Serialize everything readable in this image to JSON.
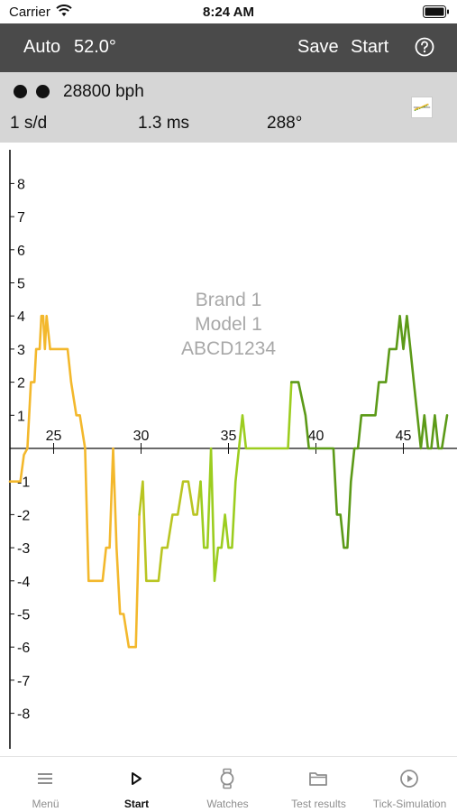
{
  "status_bar": {
    "carrier": "Carrier",
    "time": "8:24 AM"
  },
  "toolbar": {
    "mode": "Auto",
    "angle": "52.0°",
    "save_label": "Save",
    "start_label": "Start",
    "help_icon": "question-circle-icon"
  },
  "info": {
    "bph": "28800 bph",
    "rate": "1 s/d",
    "amplitude": "1.3 ms",
    "beat": "288°",
    "thumbnail_icon": "chart-thumbnail-icon"
  },
  "watch": {
    "brand": "Brand 1",
    "model": "Model 1",
    "serial": "ABCD1234"
  },
  "colors": {
    "toolbar_bg": "#4a4a4a",
    "info_bg": "#d6d6d6",
    "trace_early": "#f3b82c",
    "trace_mid": "#9ccd1f",
    "trace_late": "#5c9a18"
  },
  "chart_data": {
    "type": "line",
    "ylim": [
      -9,
      9
    ],
    "xlim": [
      22.5,
      47.5
    ],
    "x_ticks": [
      "25",
      "30",
      "35",
      "40",
      "45"
    ],
    "y_ticks": [
      "8",
      "7",
      "6",
      "5",
      "4",
      "3",
      "2",
      "1",
      "-1",
      "-2",
      "-3",
      "-4",
      "-5",
      "-6",
      "-7",
      "-8"
    ],
    "grid": false,
    "series": [
      {
        "color": "#f3b82c",
        "x": [
          22.5,
          22.8,
          23.1,
          23.3,
          23.5,
          23.7,
          23.9,
          24.0,
          24.2,
          24.3,
          24.4,
          24.5,
          24.6,
          24.8
        ],
        "y": [
          -1.0,
          -1.0,
          -1.0,
          -0.2,
          0.0,
          2.0,
          2.0,
          3.0,
          3.0,
          4.0,
          4.0,
          3.0,
          4.0,
          3.0
        ]
      },
      {
        "color": "#f3b82c",
        "x": [
          24.8,
          25.2,
          25.4,
          25.8,
          26.0,
          26.3,
          26.5,
          26.8,
          27.0,
          27.4,
          27.8,
          28.0,
          28.2,
          28.4,
          28.6,
          28.8,
          29.0,
          29.3,
          29.5,
          29.7,
          29.9
        ],
        "y": [
          3.0,
          3.0,
          3.0,
          3.0,
          2.0,
          1.0,
          1.0,
          0.0,
          -4.0,
          -4.0,
          -4.0,
          -3.0,
          -3.0,
          0.0,
          -3.0,
          -5.0,
          -5.0,
          -6.0,
          -6.0,
          -6.0,
          -2.0
        ]
      },
      {
        "color": "#b9c522",
        "x": [
          29.9,
          30.1,
          30.3,
          30.5,
          31.0,
          31.2,
          31.5,
          31.8,
          32.1,
          32.4,
          32.7,
          33.0,
          33.2,
          33.4
        ],
        "y": [
          -2.0,
          -1.0,
          -4.0,
          -4.0,
          -4.0,
          -3.0,
          -3.0,
          -2.0,
          -2.0,
          -1.0,
          -1.0,
          -2.0,
          -2.0,
          -1.0
        ]
      },
      {
        "color": "#9ccd1f",
        "x": [
          33.4,
          33.6,
          33.8,
          34.0,
          34.2,
          34.4,
          34.6,
          34.8,
          35.0,
          35.2,
          35.4,
          35.6,
          35.8,
          36.0,
          36.2,
          36.4,
          36.6,
          37.0,
          37.5,
          38.0,
          38.4,
          38.6
        ],
        "y": [
          -1.0,
          -3.0,
          -3.0,
          0.0,
          -4.0,
          -3.0,
          -3.0,
          -2.0,
          -3.0,
          -3.0,
          -1.0,
          0.0,
          1.0,
          0.0,
          0.0,
          0.0,
          0.0,
          0.0,
          0.0,
          0.0,
          0.0,
          2.0
        ]
      },
      {
        "color": "#5c9a18",
        "x": [
          38.6,
          39.0,
          39.4,
          39.6,
          39.8,
          40.0,
          40.2,
          40.6,
          41.0,
          41.2,
          41.4,
          41.6,
          41.8,
          42.0,
          42.2,
          42.4,
          42.6,
          43.0,
          43.4,
          43.6,
          44.0,
          44.2,
          44.4,
          44.6,
          44.8,
          45.0,
          45.2,
          45.4,
          45.6,
          45.8,
          46.0,
          46.2,
          46.4,
          46.6,
          46.8,
          47.0,
          47.2,
          47.5
        ],
        "y": [
          2.0,
          2.0,
          1.0,
          0.0,
          0.0,
          0.0,
          0.0,
          0.0,
          0.0,
          -2.0,
          -2.0,
          -3.0,
          -3.0,
          -1.0,
          0.0,
          0.0,
          1.0,
          1.0,
          1.0,
          2.0,
          2.0,
          3.0,
          3.0,
          3.0,
          4.0,
          3.0,
          4.0,
          3.0,
          2.0,
          1.0,
          0.0,
          1.0,
          0.0,
          0.0,
          1.0,
          0.0,
          0.0,
          1.0
        ]
      }
    ]
  },
  "tabs": [
    {
      "label": "Menü",
      "icon": "hamburger-menu-icon",
      "active": false
    },
    {
      "label": "Start",
      "icon": "play-icon",
      "active": true
    },
    {
      "label": "Watches",
      "icon": "watch-icon",
      "active": false
    },
    {
      "label": "Test results",
      "icon": "folder-icon",
      "active": false
    },
    {
      "label": "Tick-Simulation",
      "icon": "play-circle-icon",
      "active": false
    }
  ]
}
